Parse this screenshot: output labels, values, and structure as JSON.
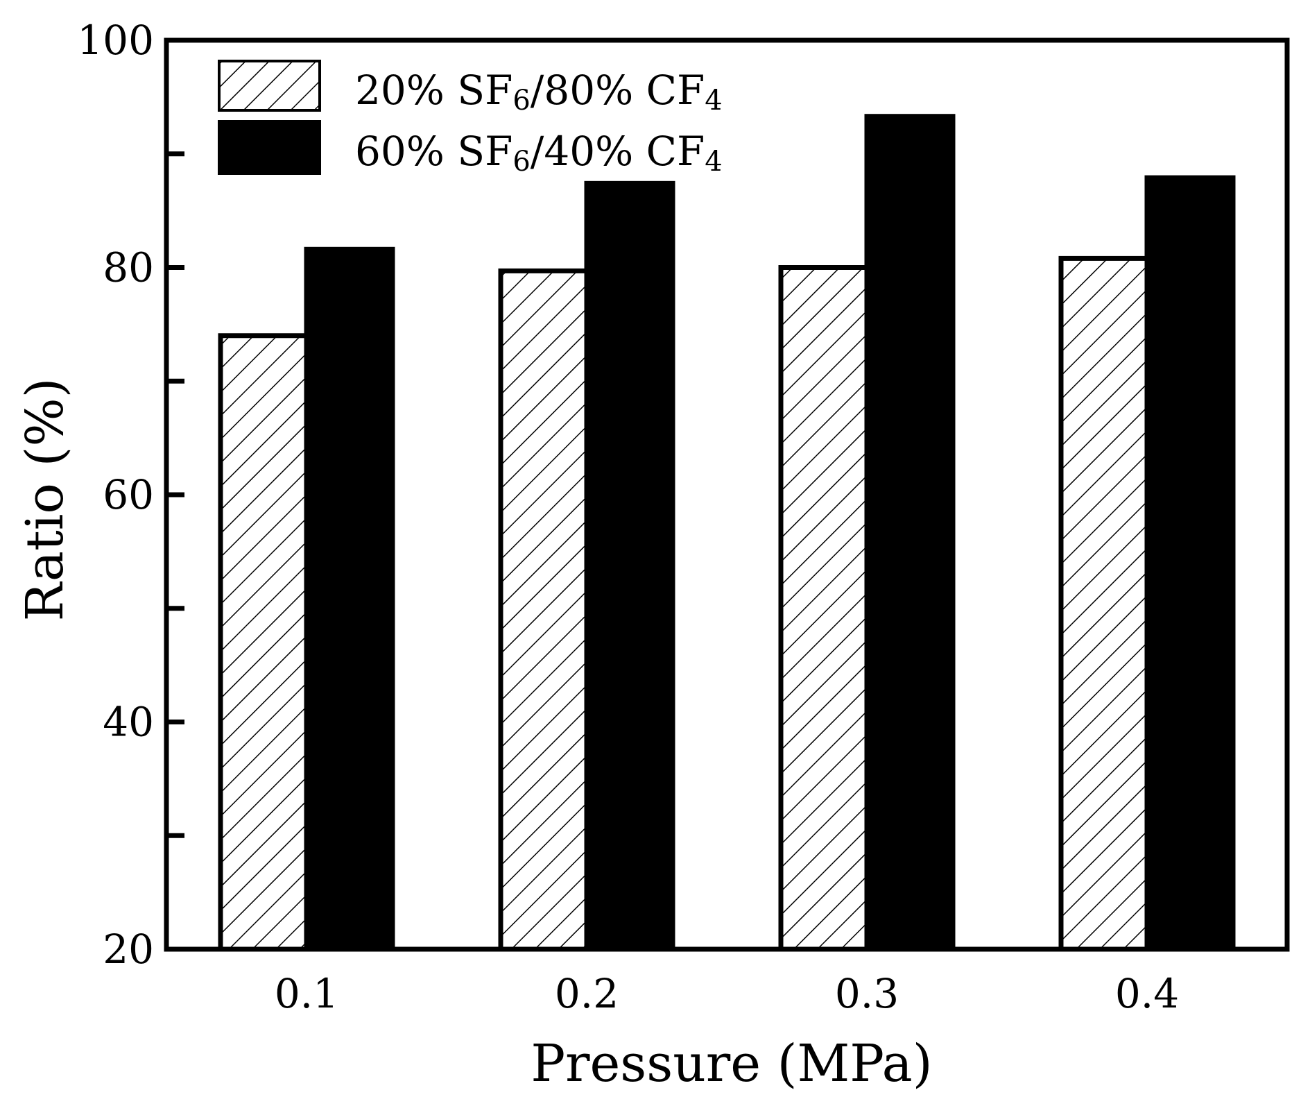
{
  "chart_data": {
    "type": "bar",
    "categories": [
      "0.1",
      "0.2",
      "0.3",
      "0.4"
    ],
    "series": [
      {
        "name": "20% SF6/80% CF4",
        "values": [
          74,
          79.7,
          80,
          80.8
        ],
        "fill": "hatch"
      },
      {
        "name": "60% SF6/40% CF4",
        "values": [
          81.6,
          87.4,
          93.3,
          87.9
        ],
        "fill": "#000000"
      }
    ],
    "legend_labels": [
      {
        "pre1": "20% SF",
        "sub1": "6",
        "mid": "/80% CF",
        "sub2": "4"
      },
      {
        "pre1": "60% SF",
        "sub1": "6",
        "mid": "/40% CF",
        "sub2": "4"
      }
    ],
    "xlabel": "Pressure (MPa)",
    "ylabel": "Ratio (%)",
    "ylim": [
      20,
      100
    ],
    "yticks_major": [
      20,
      40,
      60,
      80,
      100
    ],
    "yticks_minor": [
      30,
      50,
      70,
      90
    ],
    "legend_position": "top-left",
    "grid": false,
    "colors": {
      "bar_fill": "#000000",
      "hatch_bg": "#ffffff",
      "axis": "#000000"
    }
  }
}
